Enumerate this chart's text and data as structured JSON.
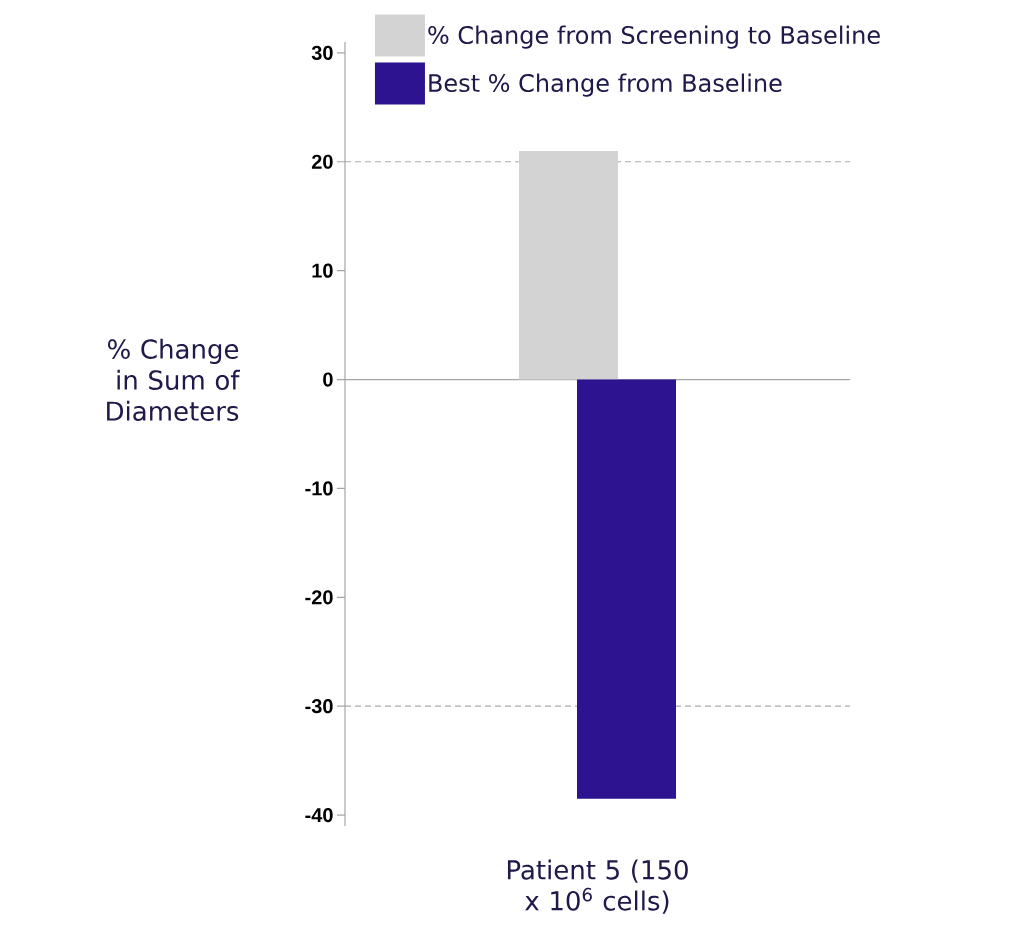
{
  "chart_data": {
    "type": "bar",
    "categories": [
      "Patient 5 (150 x 10$^{6}$ cells)"
    ],
    "ylabel": "% Change in Sum of Diameters",
    "series": [
      {
        "name": "% Change from Screening to Baseline",
        "color": "#d3d3d3",
        "values": [
          21
        ]
      },
      {
        "name": "Best % Change from Baseline",
        "color": "#2e1390",
        "values": [
          -38.5
        ]
      }
    ],
    "ylim": [
      -41,
      31
    ],
    "yticks": [
      -40,
      -30,
      -20,
      -10,
      0,
      10,
      20,
      30
    ],
    "ref_lines": [
      {
        "axis": "y",
        "value": 20,
        "color": "#aaaaaa",
        "line_style": "dashed"
      },
      {
        "axis": "y",
        "value": -30,
        "color": "#aaaaaa",
        "line_style": "dashed"
      }
    ],
    "legend": "top",
    "grid": false
  }
}
